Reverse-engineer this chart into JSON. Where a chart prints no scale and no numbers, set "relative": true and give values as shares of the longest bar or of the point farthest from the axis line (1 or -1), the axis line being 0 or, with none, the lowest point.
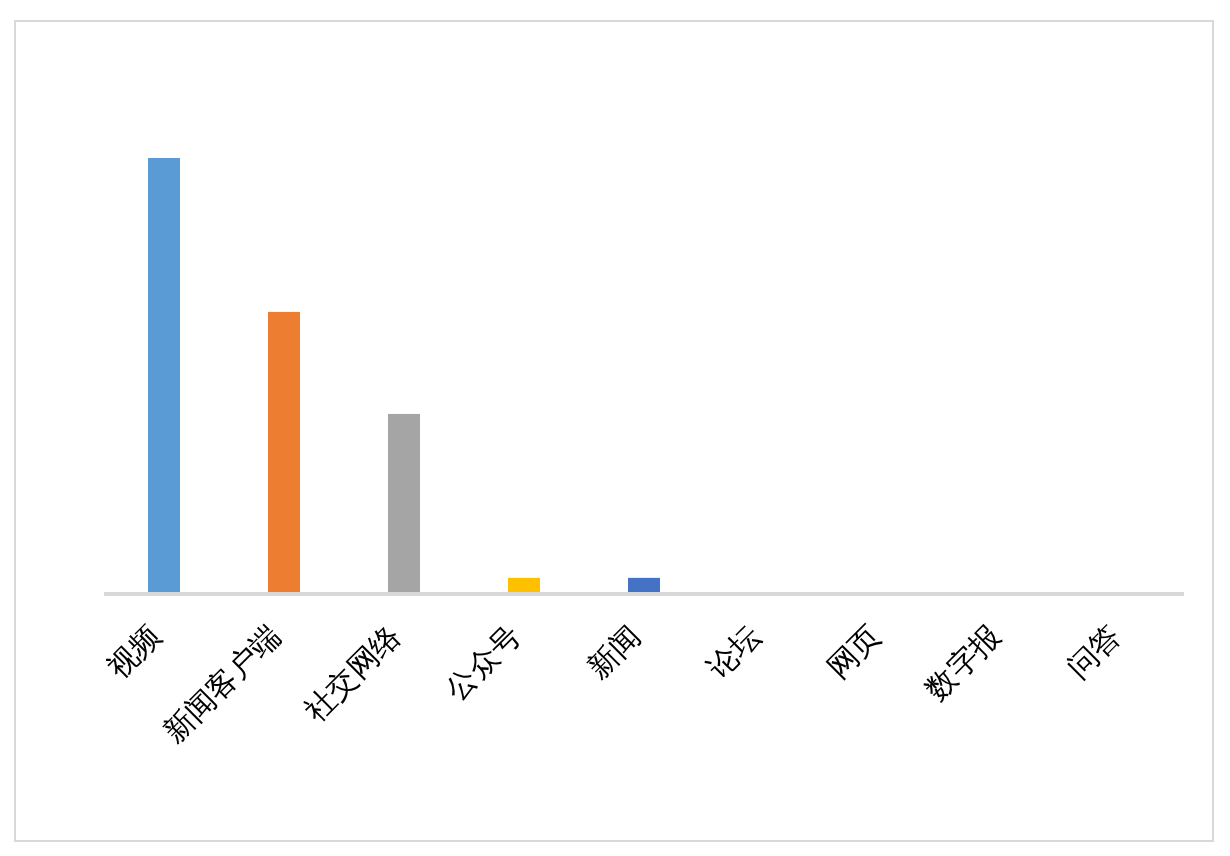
{
  "chart_data": {
    "type": "bar",
    "relative": true,
    "categories": [
      "视频",
      "新闻客户端",
      "社交网络",
      "公众号",
      "新闻",
      "论坛",
      "网页",
      "数字报",
      "问答"
    ],
    "values": [
      1,
      0.647,
      0.413,
      0.037,
      0.037,
      0,
      0,
      0,
      0
    ],
    "colors": [
      "#5b9bd5",
      "#ed7d31",
      "#a5a5a5",
      "#ffc000",
      "#4472c4",
      null,
      null,
      null,
      null
    ]
  }
}
